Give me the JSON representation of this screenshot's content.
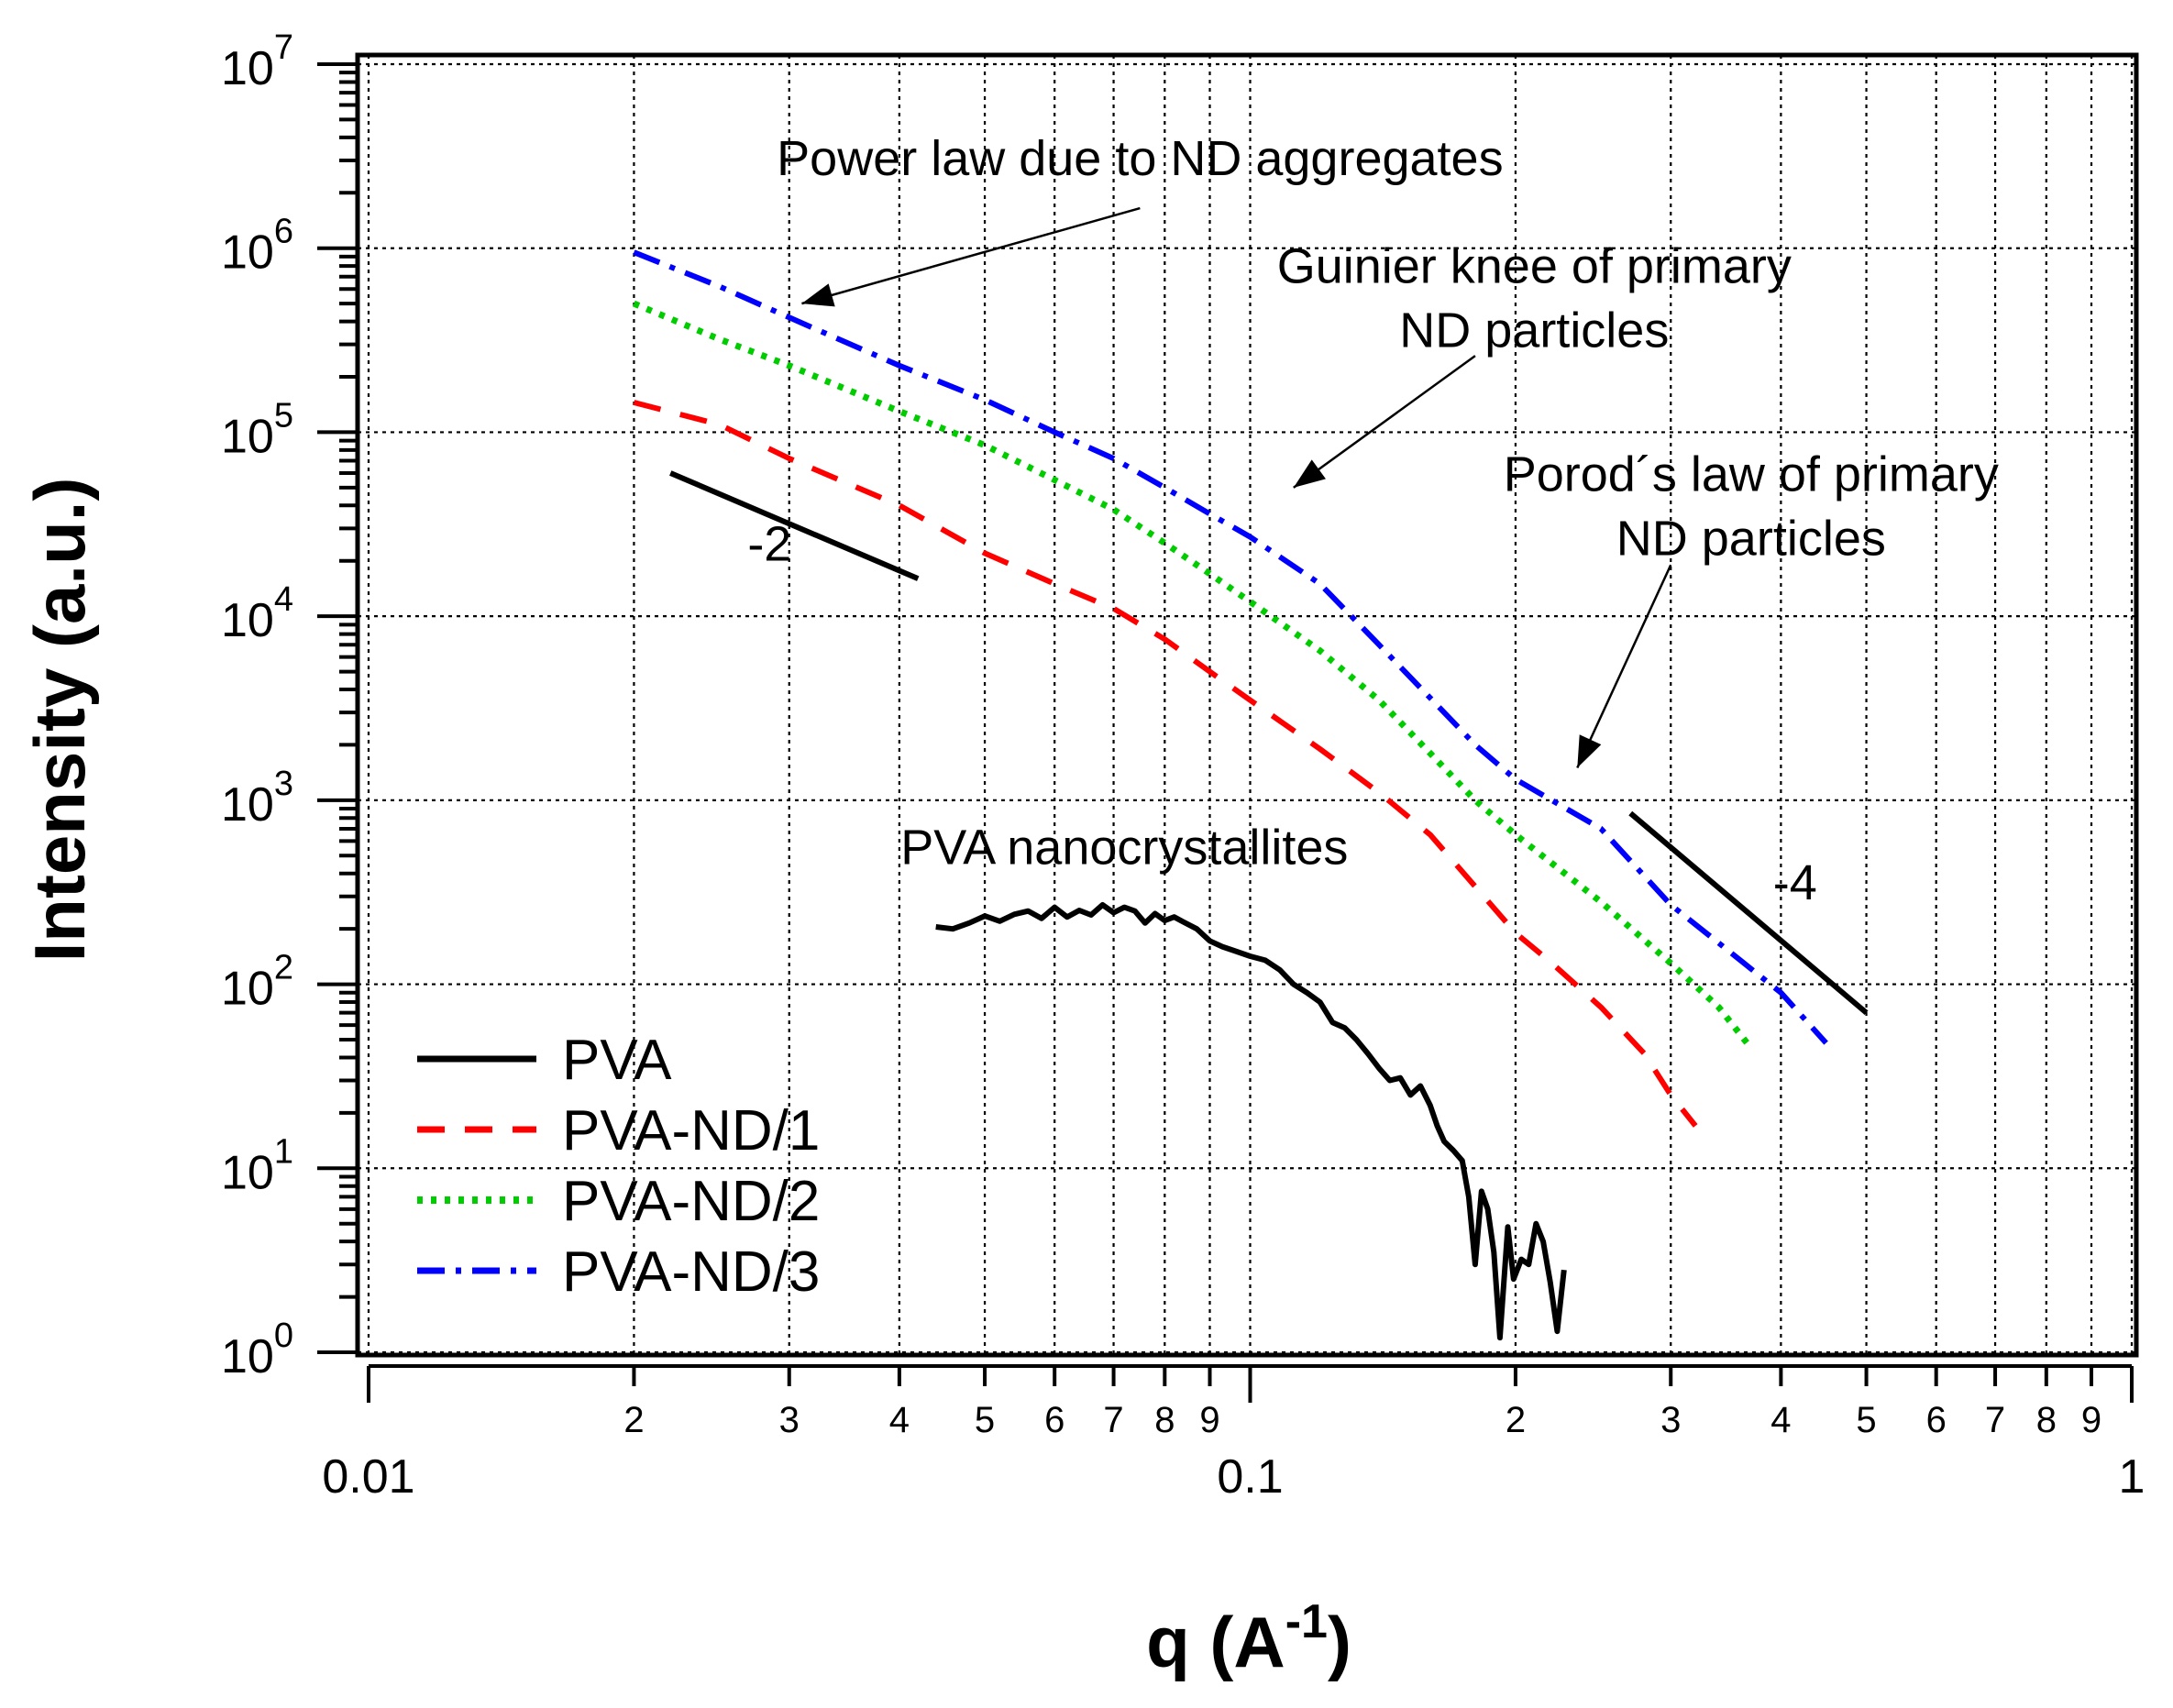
{
  "chart_data": {
    "type": "line",
    "xscale": "log",
    "yscale": "log",
    "xlim": [
      0.01,
      1
    ],
    "ylim": [
      1,
      10000000
    ],
    "grid": true,
    "legend_position": "bottom-left",
    "xlabel": "q (A-1)",
    "xlabel_main": "q (A",
    "xlabel_sup": "-1",
    "xlabel_close": ")",
    "ylabel": "Intensity (a.u.)",
    "x_major_ticks": [
      {
        "value": 0.01,
        "label": "0.01"
      },
      {
        "value": 0.1,
        "label": "0.1"
      },
      {
        "value": 1,
        "label": "1"
      }
    ],
    "x_minor_ticks": [
      {
        "value": 0.02,
        "label": "2"
      },
      {
        "value": 0.03,
        "label": "3"
      },
      {
        "value": 0.04,
        "label": "4"
      },
      {
        "value": 0.05,
        "label": "5"
      },
      {
        "value": 0.06,
        "label": "6"
      },
      {
        "value": 0.07,
        "label": "7"
      },
      {
        "value": 0.08,
        "label": "8"
      },
      {
        "value": 0.09,
        "label": "9"
      },
      {
        "value": 0.2,
        "label": "2"
      },
      {
        "value": 0.3,
        "label": "3"
      },
      {
        "value": 0.4,
        "label": "4"
      },
      {
        "value": 0.5,
        "label": "5"
      },
      {
        "value": 0.6,
        "label": "6"
      },
      {
        "value": 0.7,
        "label": "7"
      },
      {
        "value": 0.8,
        "label": "8"
      },
      {
        "value": 0.9,
        "label": "9"
      }
    ],
    "y_ticks": [
      {
        "value": 1,
        "base": "10",
        "exp": "0"
      },
      {
        "value": 10,
        "base": "10",
        "exp": "1"
      },
      {
        "value": 100,
        "base": "10",
        "exp": "2"
      },
      {
        "value": 1000,
        "base": "10",
        "exp": "3"
      },
      {
        "value": 10000,
        "base": "10",
        "exp": "4"
      },
      {
        "value": 100000,
        "base": "10",
        "exp": "5"
      },
      {
        "value": 1000000,
        "base": "10",
        "exp": "6"
      },
      {
        "value": 10000000,
        "base": "10",
        "exp": "7"
      }
    ],
    "series": [
      {
        "name": "PVA",
        "color": "#000000",
        "style": "solid",
        "points": [
          [
            0.044,
            205
          ],
          [
            0.046,
            200
          ],
          [
            0.048,
            215
          ],
          [
            0.05,
            235
          ],
          [
            0.052,
            220
          ],
          [
            0.054,
            240
          ],
          [
            0.056,
            250
          ],
          [
            0.058,
            228
          ],
          [
            0.06,
            262
          ],
          [
            0.062,
            232
          ],
          [
            0.064,
            252
          ],
          [
            0.066,
            238
          ],
          [
            0.068,
            270
          ],
          [
            0.07,
            245
          ],
          [
            0.072,
            262
          ],
          [
            0.074,
            250
          ],
          [
            0.076,
            215
          ],
          [
            0.078,
            242
          ],
          [
            0.08,
            222
          ],
          [
            0.082,
            232
          ],
          [
            0.084,
            218
          ],
          [
            0.087,
            200
          ],
          [
            0.09,
            172
          ],
          [
            0.093,
            160
          ],
          [
            0.096,
            152
          ],
          [
            0.1,
            142
          ],
          [
            0.104,
            135
          ],
          [
            0.108,
            120
          ],
          [
            0.112,
            100
          ],
          [
            0.116,
            90
          ],
          [
            0.12,
            80
          ],
          [
            0.124,
            62
          ],
          [
            0.128,
            58
          ],
          [
            0.132,
            50
          ],
          [
            0.136,
            42
          ],
          [
            0.14,
            35
          ],
          [
            0.144,
            30
          ],
          [
            0.148,
            31
          ],
          [
            0.152,
            25
          ],
          [
            0.156,
            28
          ],
          [
            0.16,
            22
          ],
          [
            0.163,
            17
          ],
          [
            0.166,
            14
          ],
          [
            0.17,
            12.5
          ],
          [
            0.174,
            11
          ],
          [
            0.177,
            7
          ],
          [
            0.18,
            3.0
          ],
          [
            0.183,
            7.5
          ],
          [
            0.186,
            6.0
          ],
          [
            0.189,
            3.5
          ],
          [
            0.192,
            1.2
          ],
          [
            0.196,
            4.8
          ],
          [
            0.199,
            2.5
          ],
          [
            0.203,
            3.2
          ],
          [
            0.207,
            3.0
          ],
          [
            0.211,
            5.0
          ],
          [
            0.215,
            4.0
          ],
          [
            0.219,
            2.4
          ],
          [
            0.223,
            1.3
          ],
          [
            0.227,
            2.8
          ]
        ]
      },
      {
        "name": "PVA-ND/1",
        "color": "#ff0000",
        "style": "dashed",
        "points": [
          [
            0.02,
            145000
          ],
          [
            0.025,
            110000
          ],
          [
            0.03,
            72000
          ],
          [
            0.04,
            40000
          ],
          [
            0.05,
            22000
          ],
          [
            0.06,
            15000
          ],
          [
            0.07,
            11000
          ],
          [
            0.08,
            7500
          ],
          [
            0.09,
            5000
          ],
          [
            0.1,
            3500
          ],
          [
            0.12,
            1900
          ],
          [
            0.14,
            1100
          ],
          [
            0.16,
            650
          ],
          [
            0.18,
            340
          ],
          [
            0.2,
            190
          ],
          [
            0.22,
            130
          ],
          [
            0.25,
            75
          ],
          [
            0.28,
            42
          ],
          [
            0.3,
            25
          ],
          [
            0.32,
            17
          ]
        ]
      },
      {
        "name": "PVA-ND/2",
        "color": "#00cc00",
        "style": "dotted",
        "points": [
          [
            0.02,
            500000
          ],
          [
            0.025,
            320000
          ],
          [
            0.03,
            230000
          ],
          [
            0.04,
            130000
          ],
          [
            0.05,
            85000
          ],
          [
            0.06,
            55000
          ],
          [
            0.07,
            38000
          ],
          [
            0.08,
            25000
          ],
          [
            0.09,
            17000
          ],
          [
            0.1,
            12000
          ],
          [
            0.12,
            6500
          ],
          [
            0.14,
            3500
          ],
          [
            0.16,
            1800
          ],
          [
            0.18,
            1000
          ],
          [
            0.2,
            650
          ],
          [
            0.25,
            280
          ],
          [
            0.3,
            130
          ],
          [
            0.34,
            75
          ],
          [
            0.37,
            45
          ]
        ]
      },
      {
        "name": "PVA-ND/3",
        "color": "#0000ff",
        "style": "dashdot",
        "points": [
          [
            0.02,
            950000
          ],
          [
            0.025,
            620000
          ],
          [
            0.03,
            420000
          ],
          [
            0.04,
            230000
          ],
          [
            0.05,
            150000
          ],
          [
            0.06,
            100000
          ],
          [
            0.07,
            72000
          ],
          [
            0.08,
            50000
          ],
          [
            0.09,
            36000
          ],
          [
            0.1,
            27000
          ],
          [
            0.12,
            15000
          ],
          [
            0.14,
            7000
          ],
          [
            0.16,
            3600
          ],
          [
            0.18,
            2000
          ],
          [
            0.2,
            1300
          ],
          [
            0.25,
            700
          ],
          [
            0.3,
            270
          ],
          [
            0.35,
            150
          ],
          [
            0.4,
            90
          ],
          [
            0.45,
            48
          ]
        ]
      }
    ],
    "reference_lines": [
      {
        "label": "-2",
        "from": [
          0.022,
          60000
        ],
        "to": [
          0.042,
          16000
        ],
        "label_at": [
          0.0285,
          20000
        ]
      },
      {
        "label": "-4",
        "from": [
          0.27,
          850
        ],
        "to": [
          0.5,
          70
        ],
        "label_at": [
          0.415,
          290
        ]
      }
    ],
    "annotations": [
      {
        "lines": [
          "Power law due to ND aggregates"
        ],
        "anchor": "middle",
        "at": [
          0.075,
          2500000
        ],
        "arrow_from": [
          0.075,
          1650000
        ],
        "arrow_to": [
          0.031,
          500000
        ]
      },
      {
        "lines": [
          "Guinier knee of primary",
          "ND particles"
        ],
        "anchor": "middle",
        "at": [
          0.21,
          650000
        ],
        "arrow_from": [
          0.18,
          260000
        ],
        "arrow_to": [
          0.112,
          50000
        ]
      },
      {
        "lines": [
          "Porod´s law of primary",
          "ND particles"
        ],
        "anchor": "middle",
        "at": [
          0.37,
          48000
        ],
        "arrow_from": [
          0.3,
          19000
        ],
        "arrow_to": [
          0.235,
          1500
        ]
      },
      {
        "lines": [
          "PVA nanocrystallites"
        ],
        "anchor": "middle",
        "at": [
          0.072,
          450
        ]
      }
    ]
  }
}
